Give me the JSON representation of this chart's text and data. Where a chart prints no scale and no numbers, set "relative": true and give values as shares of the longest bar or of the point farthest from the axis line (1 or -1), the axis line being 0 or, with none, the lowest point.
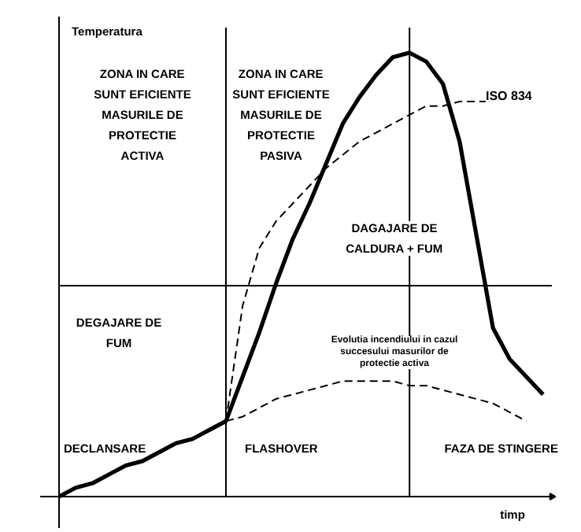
{
  "chart_data": {
    "type": "line",
    "relative": true,
    "ylabel": "Temperatura",
    "xlabel": "timp",
    "categories": [
      null,
      null,
      null,
      null,
      null,
      null,
      null,
      null,
      null,
      null,
      null,
      null,
      null,
      null,
      null,
      null,
      null,
      null,
      null,
      null,
      null,
      null,
      null,
      null,
      null,
      null,
      null,
      null,
      null,
      null,
      null
    ],
    "series": [
      {
        "color": "#000000",
        "line_style": "solid",
        "values": [
          0,
          0.02,
          0.03,
          0.05,
          0.07,
          0.08,
          0.1,
          0.12,
          0.13,
          0.15,
          0.17,
          0.27,
          0.37,
          0.48,
          0.58,
          0.66,
          0.75,
          0.84,
          0.9,
          0.95,
          0.99,
          1.0,
          0.98,
          0.93,
          0.8,
          0.59,
          0.38,
          0.31,
          0.27,
          0.23,
          null
        ]
      },
      {
        "name": "ISO 834",
        "color": "#000000",
        "line_style": "dashed",
        "values": [
          null,
          null,
          null,
          null,
          null,
          null,
          null,
          null,
          null,
          null,
          0.17,
          0.43,
          0.56,
          0.62,
          0.66,
          0.7,
          0.74,
          0.77,
          0.8,
          0.82,
          0.84,
          0.86,
          0.88,
          0.88,
          0.89,
          0.89,
          0.89,
          null,
          null,
          null,
          null
        ]
      },
      {
        "name": "Evolutia incendiului in cazul\nsuccesului masurilor de\nprotectie activa",
        "color": "#000000",
        "line_style": "dashed",
        "values": [
          null,
          null,
          null,
          null,
          null,
          null,
          null,
          null,
          null,
          null,
          0.17,
          0.18,
          0.2,
          0.22,
          0.23,
          0.24,
          0.25,
          0.26,
          0.26,
          0.26,
          0.26,
          0.25,
          0.25,
          0.24,
          0.23,
          0.22,
          0.21,
          0.19,
          0.17,
          null,
          null
        ]
      }
    ],
    "grid": true,
    "annotations": [
      "ZONA IN CARE\nSUNT EFICIENTE\nMASURILE DE\nPROTECTIE\nACTIVA",
      "ZONA IN CARE\nSUNT EFICIENTE\nMASURILE DE\nPROTECTIE\nPASIVA",
      "DAGAJARE DE\nCALDURA + FUM",
      "DEGAJARE DE\nFUM",
      "DECLANSARE",
      "FLASHOVER",
      "FAZA DE STINGERE"
    ],
    "legend": false
  }
}
